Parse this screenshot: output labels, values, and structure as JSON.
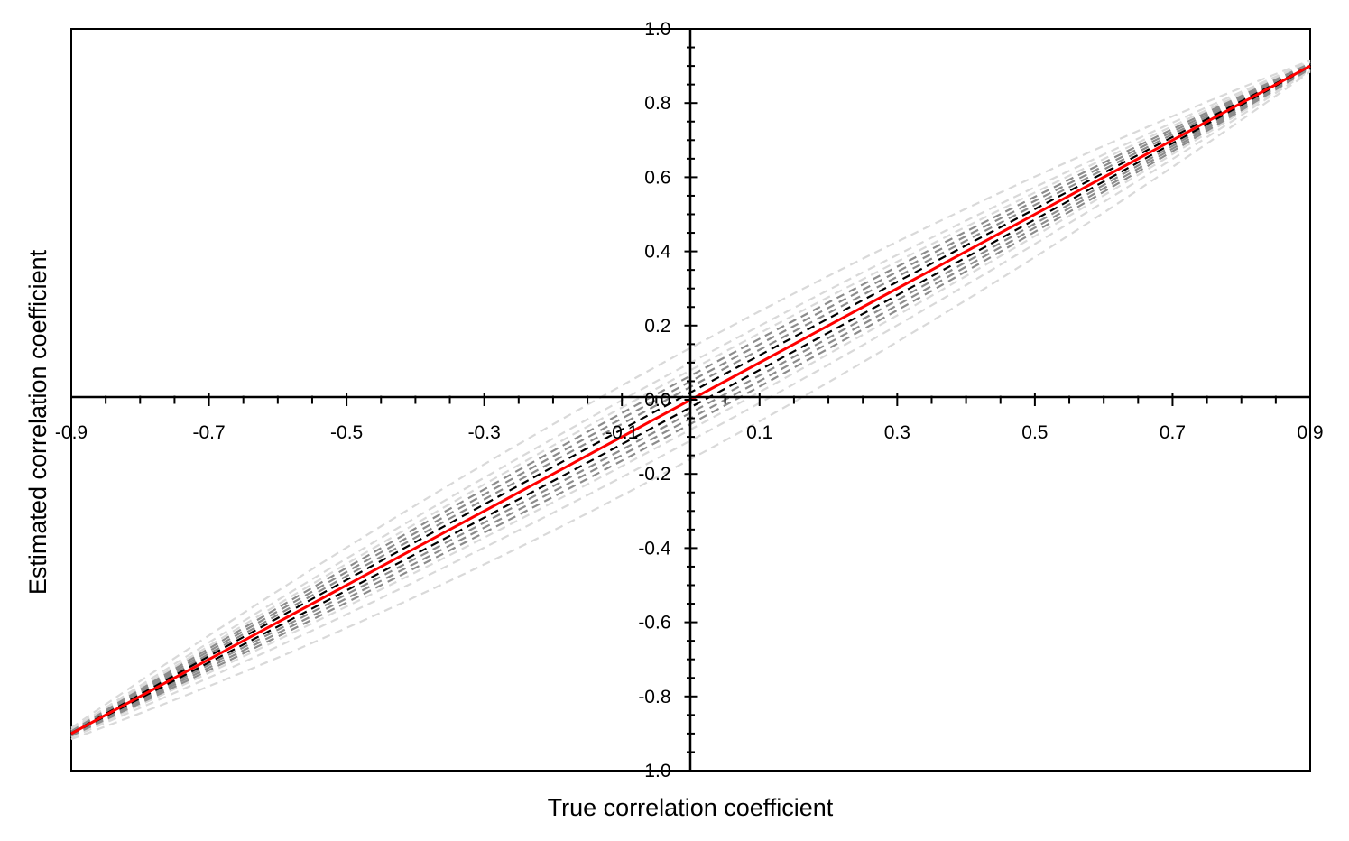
{
  "chart_data": {
    "type": "line",
    "title": "",
    "xlabel": "True correlation coefficient",
    "ylabel": "Estimated correlation coefficient",
    "xlim": [
      -0.9,
      0.9
    ],
    "ylim": [
      -1.0,
      1.0
    ],
    "x_ticks": [
      "-0.9",
      "-0.7",
      "-0.5",
      "-0.3",
      "-0.1",
      "0.1",
      "0.3",
      "0.5",
      "0.7",
      "0.9"
    ],
    "y_ticks": [
      "-1.0",
      "-0.8",
      "-0.6",
      "-0.4",
      "-0.2",
      "0.0",
      "0.2",
      "0.4",
      "0.6",
      "0.8",
      "1.0"
    ],
    "grid": false,
    "legend": "none",
    "axes_crossing": [
      0,
      0
    ],
    "x": [
      -0.9,
      0.0,
      0.9
    ],
    "series": [
      {
        "values": [
          -0.915,
          -0.16,
          0.885
        ],
        "color": "#d9d9d9",
        "style": "dashed"
      },
      {
        "values": [
          -0.885,
          0.14,
          0.915
        ],
        "color": "#d9d9d9",
        "style": "dashed"
      },
      {
        "values": [
          -0.91,
          -0.11,
          0.888
        ],
        "color": "#d9d9d9",
        "style": "dashed"
      },
      {
        "values": [
          -0.89,
          0.1,
          0.912
        ],
        "color": "#d9d9d9",
        "style": "dashed"
      },
      {
        "values": [
          -0.908,
          -0.08,
          0.89
        ],
        "color": "#d9d9d9",
        "style": "dashed"
      },
      {
        "values": [
          -0.892,
          0.08,
          0.91
        ],
        "color": "#d9d9d9",
        "style": "dashed"
      },
      {
        "values": [
          -0.906,
          -0.065,
          0.893
        ],
        "color": "#8c8c8c",
        "style": "dashed"
      },
      {
        "values": [
          -0.894,
          0.065,
          0.907
        ],
        "color": "#8c8c8c",
        "style": "dashed"
      },
      {
        "values": [
          -0.904,
          -0.05,
          0.895
        ],
        "color": "#8c8c8c",
        "style": "dashed"
      },
      {
        "values": [
          -0.896,
          0.05,
          0.905
        ],
        "color": "#8c8c8c",
        "style": "dashed"
      },
      {
        "values": [
          -0.902,
          -0.035,
          0.897
        ],
        "color": "#8c8c8c",
        "style": "dashed"
      },
      {
        "values": [
          -0.898,
          0.035,
          0.903
        ],
        "color": "#8c8c8c",
        "style": "dashed"
      },
      {
        "values": [
          -0.901,
          -0.02,
          0.899
        ],
        "color": "#000000",
        "style": "dashed"
      },
      {
        "values": [
          -0.899,
          0.02,
          0.901
        ],
        "color": "#000000",
        "style": "dashed"
      },
      {
        "values": [
          -0.9,
          0.0,
          0.9
        ],
        "color": "#ff0000",
        "style": "solid"
      }
    ]
  }
}
